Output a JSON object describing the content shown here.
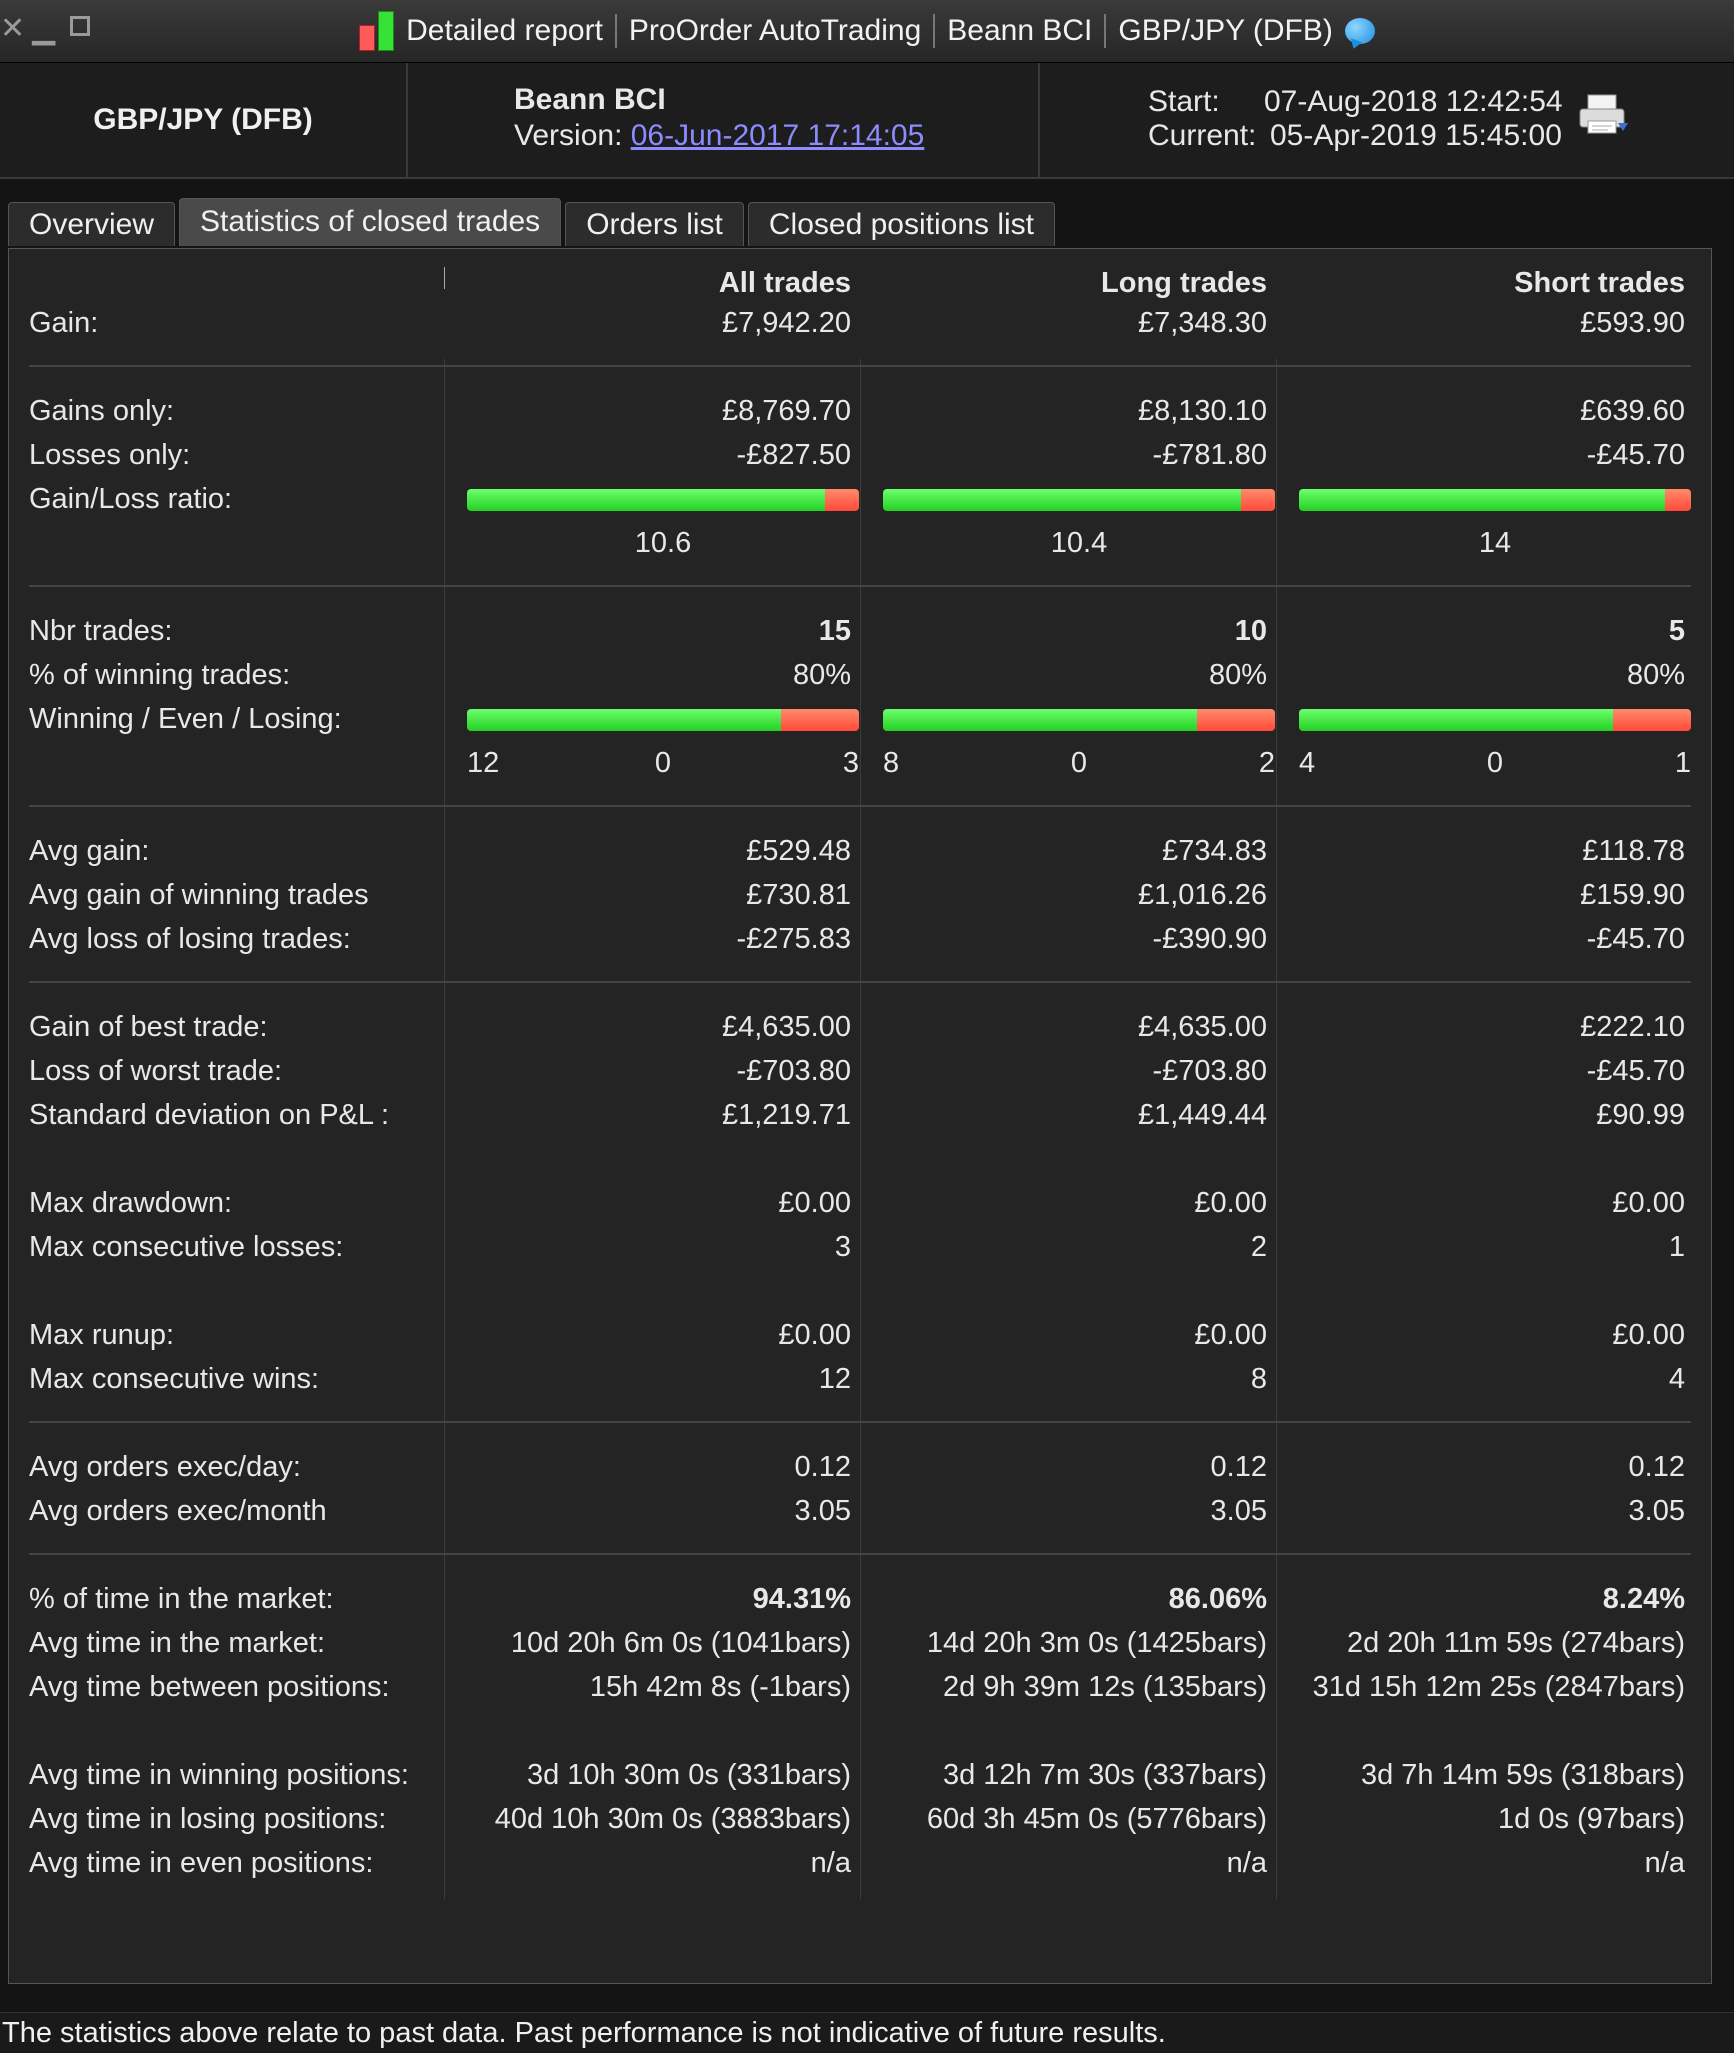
{
  "titlebar": {
    "parts": [
      "Detailed report",
      "ProOrder AutoTrading",
      "Beann BCI",
      "GBP/JPY (DFB)"
    ]
  },
  "header": {
    "instrument": "GBP/JPY (DFB)",
    "strategy": "Beann BCI",
    "version_label": "Version: ",
    "version_link": "06-Jun-2017 17:14:05",
    "start_label": "Start:",
    "start_value": "07-Aug-2018 12:42:54",
    "current_label": "Current:",
    "current_value": "05-Apr-2019 15:45:00"
  },
  "tabs": [
    "Overview",
    "Statistics of closed trades",
    "Orders list",
    "Closed positions list"
  ],
  "columns": [
    "All trades",
    "Long trades",
    "Short trades"
  ],
  "rows": {
    "gain": {
      "label": "Gain:",
      "values": [
        "£7,942.20",
        "£7,348.30",
        "£593.90"
      ]
    },
    "gains_only": {
      "label": "Gains only:",
      "values": [
        "£8,769.70",
        "£8,130.10",
        "£639.60"
      ]
    },
    "losses_only": {
      "label": "Losses only:",
      "values": [
        "-£827.50",
        "-£781.80",
        "-£45.70"
      ]
    },
    "gl_ratio": {
      "label": "Gain/Loss ratio:",
      "values": [
        "10.6",
        "10.4",
        "14"
      ],
      "green_fraction": [
        0.914,
        0.912,
        0.933
      ]
    },
    "nbr_trades": {
      "label": "Nbr trades:",
      "values": [
        "15",
        "10",
        "5"
      ]
    },
    "pct_winning": {
      "label": "% of winning trades:",
      "values": [
        "80%",
        "80%",
        "80%"
      ]
    },
    "wel": {
      "label": "Winning / Even / Losing:",
      "winning": [
        "12",
        "8",
        "4"
      ],
      "even": [
        "0",
        "0",
        "0"
      ],
      "losing": [
        "3",
        "2",
        "1"
      ],
      "winning_fraction": [
        0.8,
        0.8,
        0.8
      ]
    },
    "avg_gain": {
      "label": "Avg gain:",
      "values": [
        "£529.48",
        "£734.83",
        "£118.78"
      ]
    },
    "avg_gain_win": {
      "label": "Avg gain of winning trades",
      "values": [
        "£730.81",
        "£1,016.26",
        "£159.90"
      ]
    },
    "avg_loss_lose": {
      "label": "Avg loss of losing trades:",
      "values": [
        "-£275.83",
        "-£390.90",
        "-£45.70"
      ]
    },
    "best_trade": {
      "label": "Gain of best trade:",
      "values": [
        "£4,635.00",
        "£4,635.00",
        "£222.10"
      ]
    },
    "worst_trade": {
      "label": "Loss of worst trade:",
      "values": [
        "-£703.80",
        "-£703.80",
        "-£45.70"
      ]
    },
    "std_dev": {
      "label": "Standard deviation on P&L :",
      "values": [
        "£1,219.71",
        "£1,449.44",
        "£90.99"
      ]
    },
    "max_drawdown": {
      "label": "Max drawdown:",
      "values": [
        "£0.00",
        "£0.00",
        "£0.00"
      ]
    },
    "max_consec_losses": {
      "label": "Max consecutive losses:",
      "values": [
        "3",
        "2",
        "1"
      ]
    },
    "max_runup": {
      "label": "Max runup:",
      "values": [
        "£0.00",
        "£0.00",
        "£0.00"
      ]
    },
    "max_consec_wins": {
      "label": "Max consecutive wins:",
      "values": [
        "12",
        "8",
        "4"
      ]
    },
    "avg_orders_day": {
      "label": "Avg orders exec/day:",
      "values": [
        "0.12",
        "0.12",
        "0.12"
      ]
    },
    "avg_orders_month": {
      "label": "Avg orders exec/month",
      "values": [
        "3.05",
        "3.05",
        "3.05"
      ]
    },
    "pct_time_market": {
      "label": "% of time in the market:",
      "values": [
        "94.31%",
        "86.06%",
        "8.24%"
      ]
    },
    "avg_time_market": {
      "label": "Avg time in the market:",
      "values": [
        "10d 20h 6m 0s (1041bars)",
        "14d 20h 3m 0s (1425bars)",
        "2d 20h 11m 59s (274bars)"
      ]
    },
    "avg_time_between": {
      "label": "Avg time between positions:",
      "values": [
        "15h 42m 8s (-1bars)",
        "2d 9h 39m 12s (135bars)",
        "31d 15h 12m 25s (2847bars)"
      ]
    },
    "avg_time_winning": {
      "label": "Avg time in winning positions:",
      "values": [
        "3d 10h 30m 0s (331bars)",
        "3d 12h 7m 30s (337bars)",
        "3d 7h 14m 59s (318bars)"
      ]
    },
    "avg_time_losing": {
      "label": "Avg time in losing positions:",
      "values": [
        "40d 10h 30m 0s (3883bars)",
        "60d 3h 45m 0s (5776bars)",
        "1d 0s (97bars)"
      ]
    },
    "avg_time_even": {
      "label": "Avg time in even positions:",
      "values": [
        "n/a",
        "n/a",
        "n/a"
      ]
    }
  },
  "footer": {
    "disclaimer": "The statistics above relate to past data. Past performance is not indicative of future results."
  },
  "colors": {
    "green": "#24d024",
    "red": "#ff4a3a",
    "link": "#8c8cff"
  }
}
